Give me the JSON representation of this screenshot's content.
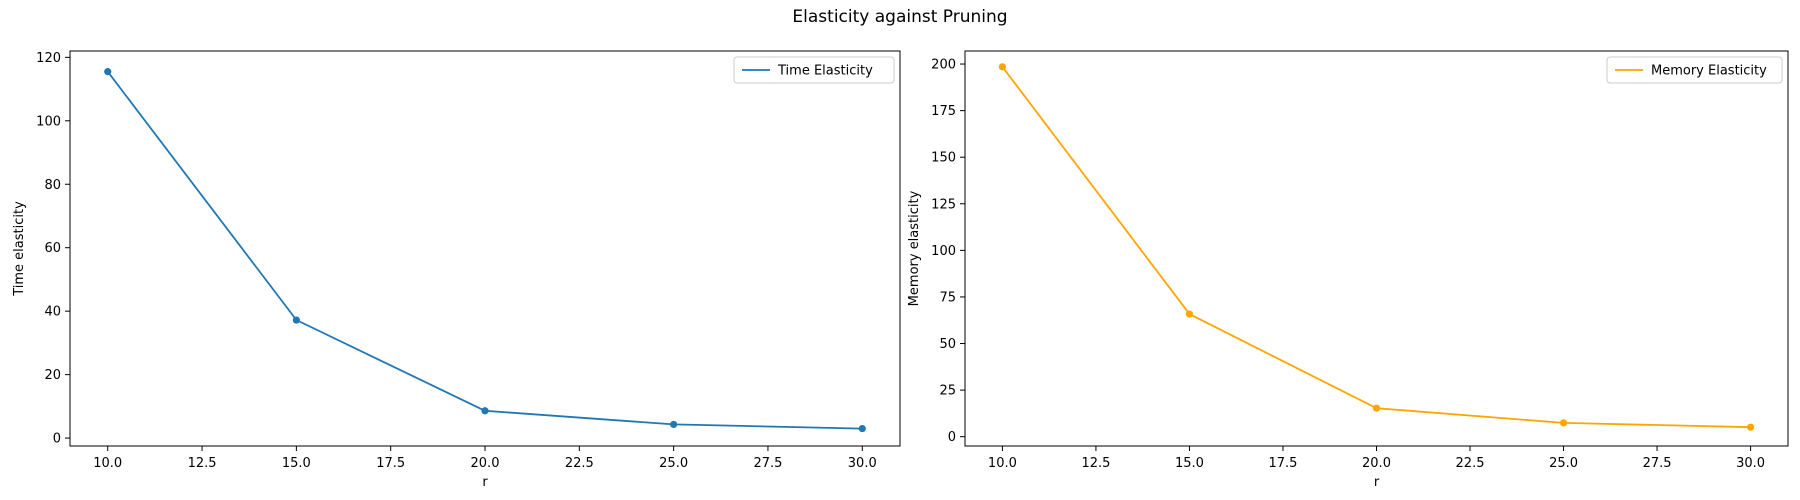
{
  "figure": {
    "title": "Elasticity against Pruning"
  },
  "chart_data": [
    {
      "type": "line",
      "xlabel": "r",
      "ylabel": "Time elasticity",
      "xlim": [
        9.0,
        31.0
      ],
      "ylim": [
        -2.5,
        122
      ],
      "xticks": [
        10.0,
        12.5,
        15.0,
        17.5,
        20.0,
        22.5,
        25.0,
        27.5,
        30.0
      ],
      "xtick_labels": [
        "10.0",
        "12.5",
        "15.0",
        "17.5",
        "20.0",
        "22.5",
        "25.0",
        "27.5",
        "30.0"
      ],
      "yticks": [
        0,
        20,
        40,
        60,
        80,
        100,
        120
      ],
      "ytick_labels": [
        "0",
        "20",
        "40",
        "60",
        "80",
        "100",
        "120"
      ],
      "grid": false,
      "legend_position": "top-right",
      "series": [
        {
          "name": "Time Elasticity",
          "color": "#1f77b4",
          "marker": "circle",
          "x": [
            10,
            15,
            20,
            25,
            30
          ],
          "y": [
            115.5,
            37.2,
            8.6,
            4.3,
            3.0
          ]
        }
      ]
    },
    {
      "type": "line",
      "xlabel": "r",
      "ylabel": "Memory elasticity",
      "xlim": [
        9.0,
        31.0
      ],
      "ylim": [
        -5,
        207
      ],
      "xticks": [
        10.0,
        12.5,
        15.0,
        17.5,
        20.0,
        22.5,
        25.0,
        27.5,
        30.0
      ],
      "xtick_labels": [
        "10.0",
        "12.5",
        "15.0",
        "17.5",
        "20.0",
        "22.5",
        "25.0",
        "27.5",
        "30.0"
      ],
      "yticks": [
        0,
        25,
        50,
        75,
        100,
        125,
        150,
        175,
        200
      ],
      "ytick_labels": [
        "0",
        "25",
        "50",
        "75",
        "100",
        "125",
        "150",
        "175",
        "200"
      ],
      "grid": false,
      "legend_position": "top-right",
      "series": [
        {
          "name": "Memory Elasticity",
          "color": "#ffa500",
          "marker": "circle",
          "x": [
            10,
            15,
            20,
            25,
            30
          ],
          "y": [
            198.5,
            65.8,
            15.3,
            7.4,
            5.1
          ]
        }
      ]
    }
  ]
}
